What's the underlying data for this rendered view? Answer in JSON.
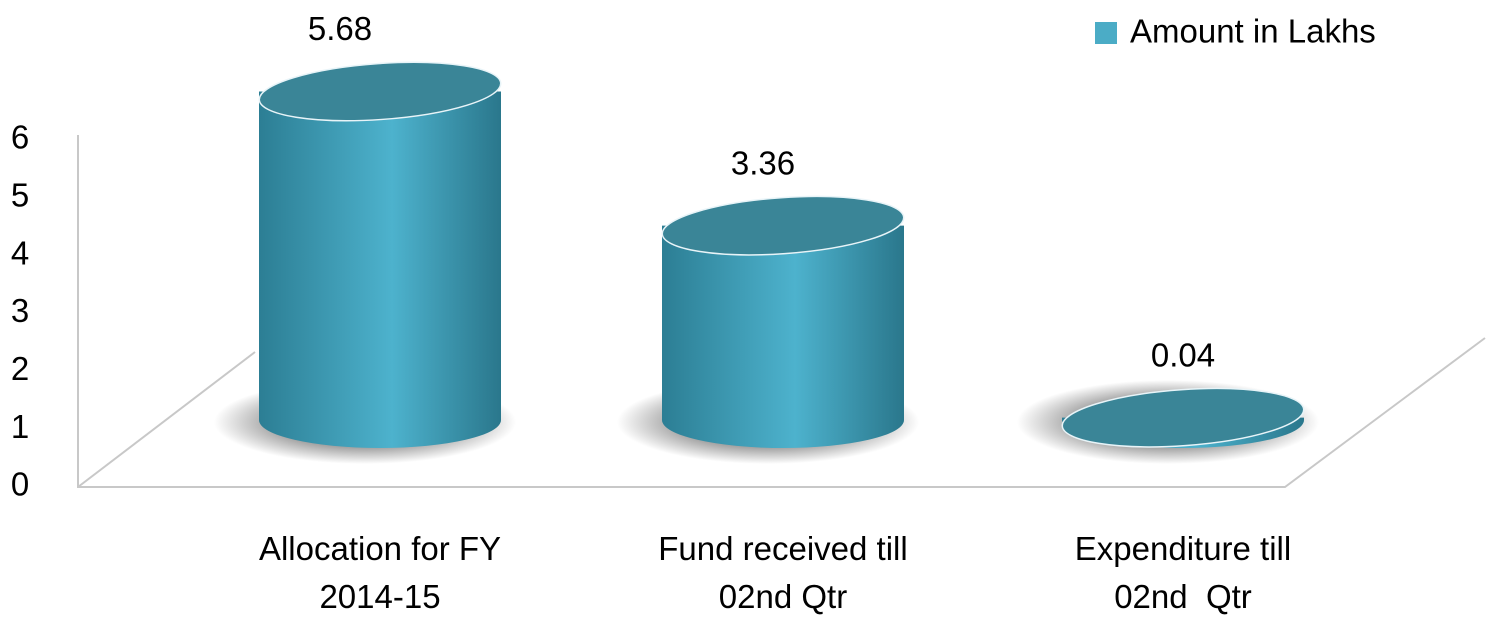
{
  "chart_data": {
    "type": "bar",
    "shape": "cylinder",
    "categories": [
      "Allocation for FY\n2014-15",
      "Fund received till\n02nd Qtr",
      "Expenditure till\n02nd  Qtr"
    ],
    "series": [
      {
        "name": "Amount in Lakhs",
        "color": "#4bacc6",
        "values": [
          5.68,
          3.36,
          0.04
        ]
      }
    ],
    "ylim": [
      0,
      6
    ],
    "yticks": [
      0,
      1,
      2,
      3,
      4,
      5,
      6
    ],
    "legend": "top-right"
  }
}
